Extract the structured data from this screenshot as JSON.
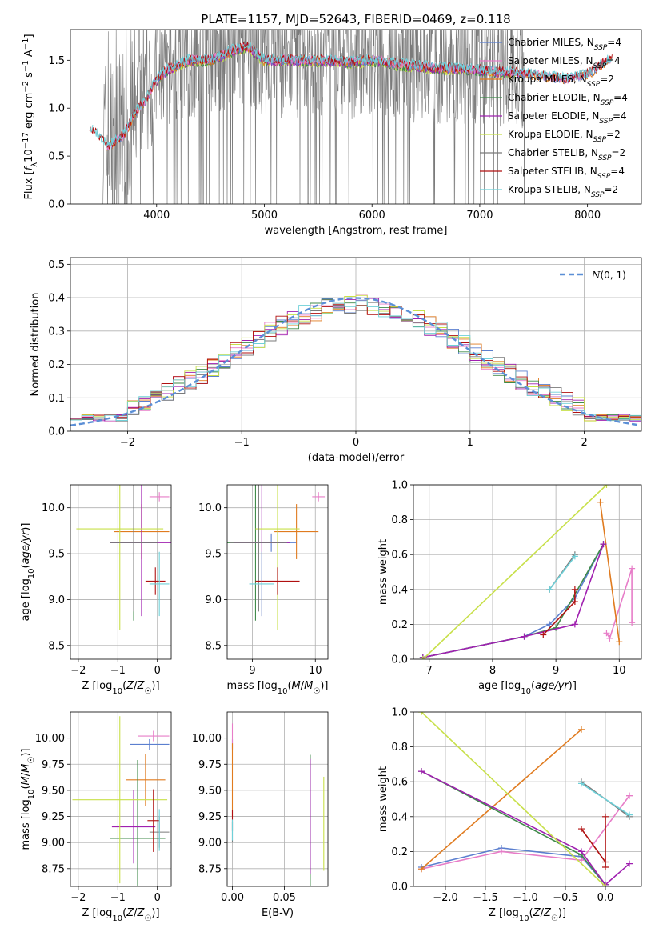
{
  "title": "PLATE=1157, MJD=52643, FIBERID=0469, z=0.118",
  "colors": {
    "Chabrier MILES": "#5b7fcf",
    "Salpeter MILES": "#e77dc8",
    "Kroupa MILES": "#e07b1f",
    "Chabrier ELODIE": "#3f8a4a",
    "Salpeter ELODIE": "#a020b0",
    "Kroupa ELODIE": "#c8e04a",
    "Chabrier STELIB": "#7a7a7a",
    "Salpeter STELIB": "#b01010",
    "Kroupa STELIB": "#6fd0d8"
  },
  "chart_data": [
    {
      "type": "line",
      "id": "spectrum",
      "xlabel": "wavelength [Angstrom, rest frame]",
      "ylabel": "Flux [f_λ 10^-17 erg cm^-2 s^-1 A^-1]",
      "xlim": [
        3200,
        8500
      ],
      "ylim": [
        0,
        1.82
      ],
      "xticks": [
        4000,
        5000,
        6000,
        7000,
        8000
      ],
      "yticks": [
        0.0,
        0.5,
        1.0,
        1.5
      ],
      "grid": false,
      "legend_position": "upper right",
      "legend": [
        {
          "key": "Chabrier MILES",
          "prefix": "Chabrier MILES, N",
          "sub": "SSP",
          "suffix": "=4"
        },
        {
          "key": "Salpeter MILES",
          "prefix": "Salpeter MILES, N",
          "sub": "SSP",
          "suffix": "=4"
        },
        {
          "key": "Kroupa MILES",
          "prefix": "Kroupa MILES, N",
          "sub": "SSP",
          "suffix": "=2"
        },
        {
          "key": "Chabrier ELODIE",
          "prefix": "Chabrier ELODIE, N",
          "sub": "SSP",
          "suffix": "=4"
        },
        {
          "key": "Salpeter ELODIE",
          "prefix": "Salpeter ELODIE, N",
          "sub": "SSP",
          "suffix": "=4"
        },
        {
          "key": "Kroupa ELODIE",
          "prefix": "Kroupa ELODIE, N",
          "sub": "SSP",
          "suffix": "=2"
        },
        {
          "key": "Chabrier STELIB",
          "prefix": "Chabrier STELIB, N",
          "sub": "SSP",
          "suffix": "=2"
        },
        {
          "key": "Salpeter STELIB",
          "prefix": "Salpeter STELIB, N",
          "sub": "SSP",
          "suffix": "=4"
        },
        {
          "key": "Kroupa STELIB",
          "prefix": "Kroupa STELIB, N",
          "sub": "SSP",
          "suffix": "=2"
        }
      ],
      "data_range_x": [
        3500,
        7420
      ],
      "model_range_x": [
        3380,
        8230
      ],
      "continuum_anchors": [
        [
          3380,
          0.8
        ],
        [
          3550,
          0.6
        ],
        [
          3700,
          0.72
        ],
        [
          3800,
          0.95
        ],
        [
          3900,
          1.08
        ],
        [
          4000,
          1.3
        ],
        [
          4100,
          1.4
        ],
        [
          4300,
          1.5
        ],
        [
          4500,
          1.5
        ],
        [
          4700,
          1.6
        ],
        [
          4850,
          1.64
        ],
        [
          5000,
          1.5
        ],
        [
          5200,
          1.5
        ],
        [
          5500,
          1.5
        ],
        [
          5800,
          1.48
        ],
        [
          6000,
          1.5
        ],
        [
          6300,
          1.45
        ],
        [
          6600,
          1.42
        ],
        [
          7000,
          1.4
        ],
        [
          7400,
          1.36
        ],
        [
          7800,
          1.3
        ],
        [
          8000,
          1.35
        ],
        [
          8230,
          1.52
        ]
      ]
    },
    {
      "type": "histogram",
      "id": "residuals",
      "xlabel": "(data-model)/error",
      "ylabel": "Normed distribution",
      "xlim": [
        -2.5,
        2.5
      ],
      "ylim": [
        0,
        0.52
      ],
      "xticks": [
        -2,
        -1,
        0,
        1,
        2
      ],
      "yticks": [
        0.0,
        0.1,
        0.2,
        0.3,
        0.4,
        0.5
      ],
      "grid": true,
      "bin_width": 0.1,
      "normal_curve": {
        "mean": 0,
        "sigma": 1,
        "label": "N(0,1)"
      },
      "legend_position": "upper right"
    },
    {
      "type": "errorbar",
      "id": "age-vs-Z",
      "xlabel": "Z [log10(Z/Z☉)]",
      "ylabel": "age [log10(age/yr)]",
      "xlim": [
        -2.2,
        0.35
      ],
      "ylim": [
        8.35,
        10.25
      ],
      "xticks": [
        -2,
        -1,
        0
      ],
      "yticks": [
        8.5,
        9.0,
        9.5,
        10.0
      ],
      "grid": true,
      "points": [
        {
          "key": "Chabrier MILES",
          "x": -0.6,
          "xerr": 0.6,
          "y": 9.62,
          "yerr": 0.1
        },
        {
          "key": "Salpeter MILES",
          "x": 0.05,
          "xerr": 0.25,
          "y": 10.12,
          "yerr": 0.05
        },
        {
          "key": "Kroupa MILES",
          "x": -0.4,
          "xerr": 0.7,
          "y": 9.74,
          "yerr": 0.3
        },
        {
          "key": "Chabrier ELODIE",
          "x": -0.6,
          "xerr": 0.6,
          "y": 9.62,
          "yerr": 0.85
        },
        {
          "key": "Salpeter ELODIE",
          "x": -0.4,
          "xerr": 0.8,
          "y": 9.62,
          "yerr": 0.8
        },
        {
          "key": "Kroupa ELODIE",
          "x": -0.95,
          "xerr": 1.1,
          "y": 9.77,
          "yerr": 1.1
        },
        {
          "key": "Chabrier STELIB",
          "x": -0.6,
          "xerr": 0.6,
          "y": 9.62,
          "yerr": 0.75
        },
        {
          "key": "Salpeter STELIB",
          "x": -0.05,
          "xerr": 0.25,
          "y": 9.2,
          "yerr": 0.15
        },
        {
          "key": "Kroupa STELIB",
          "x": 0.05,
          "xerr": 0.25,
          "y": 9.17,
          "yerr": 0.35
        }
      ]
    },
    {
      "type": "errorbar",
      "id": "age-vs-mass",
      "xlabel": "mass [log10(M/M☉)]",
      "ylabel": "",
      "xlim": [
        8.6,
        10.2
      ],
      "ylim": [
        8.35,
        10.25
      ],
      "xticks": [
        9,
        10
      ],
      "yticks": [
        8.5,
        9.0,
        9.5,
        10.0
      ],
      "grid": true,
      "points": [
        {
          "key": "Chabrier MILES",
          "x": 9.3,
          "xerr": 0.4,
          "y": 9.62,
          "yerr": 0.1
        },
        {
          "key": "Salpeter MILES",
          "x": 10.05,
          "xerr": 0.1,
          "y": 10.12,
          "yerr": 0.05
        },
        {
          "key": "Kroupa MILES",
          "x": 9.7,
          "xerr": 0.35,
          "y": 9.74,
          "yerr": 0.3
        },
        {
          "key": "Chabrier ELODIE",
          "x": 9.05,
          "xerr": 0.45,
          "y": 9.62,
          "yerr": 0.85
        },
        {
          "key": "Salpeter ELODIE",
          "x": 9.15,
          "xerr": 0.45,
          "y": 9.62,
          "yerr": 0.8
        },
        {
          "key": "Kroupa ELODIE",
          "x": 9.4,
          "xerr": 0.35,
          "y": 9.77,
          "yerr": 1.1
        },
        {
          "key": "Chabrier STELIB",
          "x": 9.1,
          "xerr": 0.45,
          "y": 9.62,
          "yerr": 0.75
        },
        {
          "key": "Salpeter STELIB",
          "x": 9.4,
          "xerr": 0.35,
          "y": 9.2,
          "yerr": 0.15
        },
        {
          "key": "Kroupa STELIB",
          "x": 9.15,
          "xerr": 0.2,
          "y": 9.17,
          "yerr": 0.35
        }
      ]
    },
    {
      "type": "line",
      "id": "mass-weight-vs-age",
      "xlabel": "age [log10(age/yr)]",
      "ylabel": "mass weight",
      "xlim": [
        6.75,
        10.35
      ],
      "ylim": [
        0,
        1.0
      ],
      "xticks": [
        7,
        8,
        9,
        10
      ],
      "yticks": [
        0.0,
        0.2,
        0.4,
        0.6,
        0.8,
        1.0
      ],
      "grid": true,
      "series": [
        {
          "key": "Chabrier MILES",
          "x": [
            6.9,
            8.5,
            8.9,
            9.3,
            9.75
          ],
          "y": [
            0.01,
            0.13,
            0.2,
            0.35,
            0.66
          ]
        },
        {
          "key": "Salpeter MILES",
          "x": [
            9.8,
            9.85,
            10.2,
            10.2
          ],
          "y": [
            0.15,
            0.12,
            0.52,
            0.21
          ]
        },
        {
          "key": "Kroupa MILES",
          "x": [
            9.7,
            10.0
          ],
          "y": [
            0.9,
            0.1
          ]
        },
        {
          "key": "Chabrier ELODIE",
          "x": [
            6.9,
            8.5,
            9.0,
            9.75
          ],
          "y": [
            0.01,
            0.13,
            0.18,
            0.66
          ]
        },
        {
          "key": "Salpeter ELODIE",
          "x": [
            6.9,
            8.5,
            9.3,
            9.75
          ],
          "y": [
            0.01,
            0.13,
            0.2,
            0.66
          ]
        },
        {
          "key": "Kroupa ELODIE",
          "x": [
            6.9,
            9.8
          ],
          "y": [
            0.0,
            1.0
          ]
        },
        {
          "key": "Chabrier STELIB",
          "x": [
            8.9,
            9.3
          ],
          "y": [
            0.4,
            0.6
          ]
        },
        {
          "key": "Salpeter STELIB",
          "x": [
            8.8,
            9.3,
            9.3
          ],
          "y": [
            0.14,
            0.33,
            0.4
          ]
        },
        {
          "key": "Kroupa STELIB",
          "x": [
            8.9,
            9.3
          ],
          "y": [
            0.4,
            0.59
          ]
        }
      ]
    },
    {
      "type": "errorbar",
      "id": "mass-vs-Z",
      "xlabel": "Z [log10(Z/Z☉)]",
      "ylabel": "mass [log10(M/M☉)]",
      "xlim": [
        -2.2,
        0.35
      ],
      "ylim": [
        8.58,
        10.25
      ],
      "xticks": [
        -2,
        -1,
        0
      ],
      "yticks": [
        8.75,
        9.0,
        9.25,
        9.5,
        9.75,
        10.0
      ],
      "grid": true,
      "points": [
        {
          "key": "Chabrier MILES",
          "x": -0.2,
          "xerr": 0.5,
          "y": 9.94,
          "yerr": 0.05
        },
        {
          "key": "Salpeter MILES",
          "x": -0.1,
          "xerr": 0.4,
          "y": 10.02,
          "yerr": 0.05
        },
        {
          "key": "Kroupa MILES",
          "x": -0.3,
          "xerr": 0.5,
          "y": 9.6,
          "yerr": 0.25
        },
        {
          "key": "Chabrier ELODIE",
          "x": -0.5,
          "xerr": 0.7,
          "y": 9.04,
          "yerr": 0.75
        },
        {
          "key": "Salpeter ELODIE",
          "x": -0.6,
          "xerr": 0.55,
          "y": 9.15,
          "yerr": 0.35
        },
        {
          "key": "Kroupa ELODIE",
          "x": -0.95,
          "xerr": 1.2,
          "y": 9.41,
          "yerr": 0.8
        },
        {
          "key": "Chabrier STELIB",
          "x": 0.05,
          "xerr": 0.25,
          "y": 9.1,
          "yerr": 0.15
        },
        {
          "key": "Salpeter STELIB",
          "x": -0.1,
          "xerr": 0.15,
          "y": 9.21,
          "yerr": 0.3
        },
        {
          "key": "Kroupa STELIB",
          "x": 0.05,
          "xerr": 0.25,
          "y": 9.12,
          "yerr": 0.2
        }
      ]
    },
    {
      "type": "errorbar",
      "id": "mass-vs-ebv",
      "xlabel": "E(B-V)",
      "ylabel": "",
      "xlim": [
        -0.005,
        0.092
      ],
      "ylim": [
        8.58,
        10.25
      ],
      "xticks": [
        0.0,
        0.05
      ],
      "yticks": [
        8.75,
        9.0,
        9.25,
        9.5,
        9.75,
        10.0
      ],
      "grid": true,
      "points": [
        {
          "key": "Chabrier MILES",
          "x": 0.0,
          "y": 9.94,
          "yerr": 0.05
        },
        {
          "key": "Salpeter MILES",
          "x": 0.0,
          "y": 10.02,
          "yerr": 0.12
        },
        {
          "key": "Kroupa MILES",
          "x": 0.0,
          "y": 9.6,
          "yerr": 0.35
        },
        {
          "key": "Chabrier ELODIE",
          "x": 0.075,
          "y": 9.04,
          "yerr": 0.8
        },
        {
          "key": "Salpeter ELODIE",
          "x": 0.075,
          "y": 9.25,
          "yerr": 0.55
        },
        {
          "key": "Kroupa ELODIE",
          "x": 0.088,
          "y": 9.18,
          "yerr": 0.45
        },
        {
          "key": "Chabrier STELIB",
          "x": 0.0,
          "y": 9.1,
          "yerr": 0.1
        },
        {
          "key": "Salpeter STELIB",
          "x": 0.0,
          "y": 9.21,
          "yerr": 0.1
        },
        {
          "key": "Kroupa STELIB",
          "x": 0.0,
          "y": 9.12,
          "yerr": 0.1
        }
      ]
    },
    {
      "type": "line",
      "id": "mass-weight-vs-Z",
      "xlabel": "Z [log10(Z/Z☉)]",
      "ylabel": "mass weight",
      "xlim": [
        -2.4,
        0.45
      ],
      "ylim": [
        0,
        1.0
      ],
      "xticks": [
        -2.0,
        -1.5,
        -1.0,
        -0.5,
        0.0
      ],
      "yticks": [
        0.0,
        0.2,
        0.4,
        0.6,
        0.8,
        1.0
      ],
      "grid": true,
      "series": [
        {
          "key": "Chabrier MILES",
          "x": [
            -2.3,
            -1.3,
            -0.3,
            0.0
          ],
          "y": [
            0.11,
            0.22,
            0.17,
            0.01
          ]
        },
        {
          "key": "Salpeter MILES",
          "x": [
            -2.3,
            -1.3,
            -0.3,
            0.3,
            0.3
          ],
          "y": [
            0.1,
            0.2,
            0.15,
            0.52,
            0.52
          ]
        },
        {
          "key": "Kroupa MILES",
          "x": [
            -2.3,
            -0.3
          ],
          "y": [
            0.1,
            0.9
          ]
        },
        {
          "key": "Chabrier ELODIE",
          "x": [
            -2.3,
            -0.3,
            0.0
          ],
          "y": [
            0.66,
            0.18,
            0.01
          ]
        },
        {
          "key": "Salpeter ELODIE",
          "x": [
            -2.3,
            -0.3,
            0.0,
            0.3
          ],
          "y": [
            0.66,
            0.2,
            0.01,
            0.13
          ]
        },
        {
          "key": "Kroupa ELODIE",
          "x": [
            -2.3,
            0.0
          ],
          "y": [
            1.0,
            0.0
          ]
        },
        {
          "key": "Chabrier STELIB",
          "x": [
            -0.3,
            0.3
          ],
          "y": [
            0.6,
            0.4
          ]
        },
        {
          "key": "Salpeter STELIB",
          "x": [
            -0.3,
            0.0,
            0.0,
            0.0
          ],
          "y": [
            0.33,
            0.14,
            0.4,
            0.11
          ]
        },
        {
          "key": "Kroupa STELIB",
          "x": [
            -0.3,
            0.3
          ],
          "y": [
            0.59,
            0.41
          ]
        }
      ]
    }
  ]
}
